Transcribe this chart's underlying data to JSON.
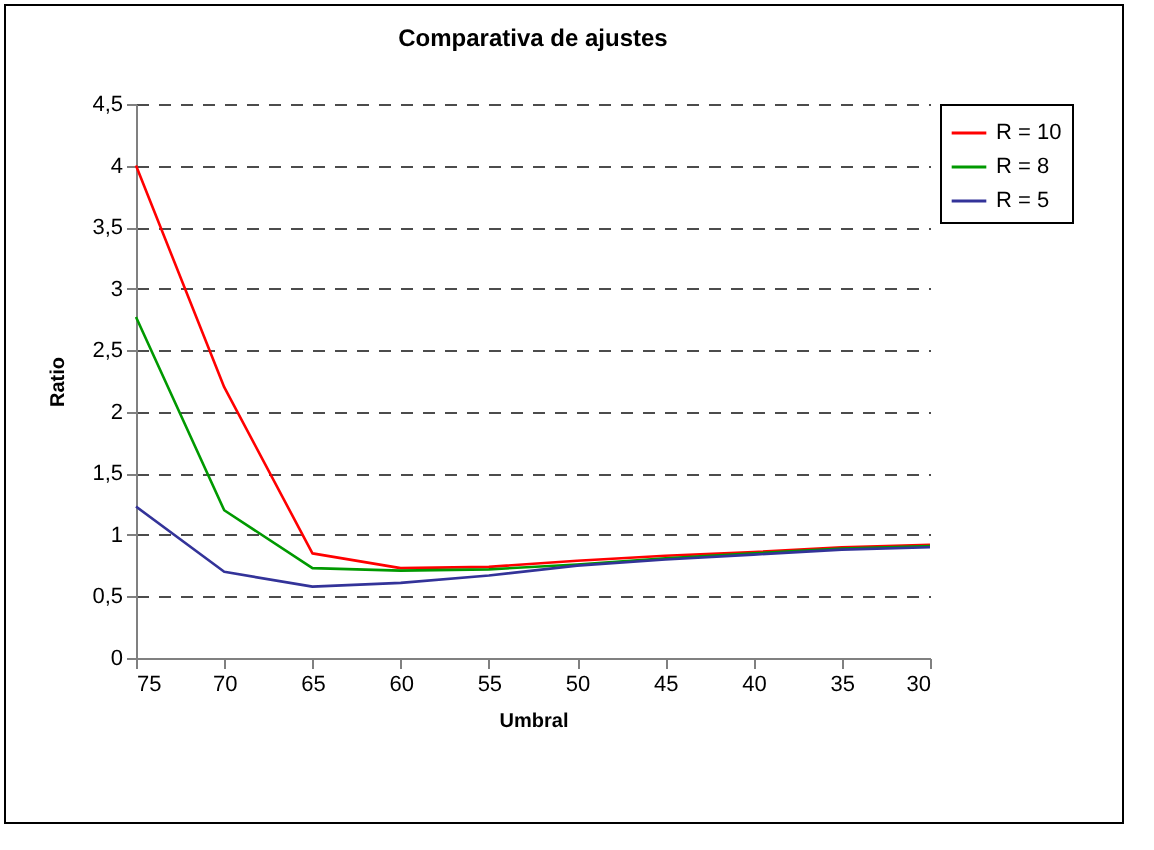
{
  "chart_data": {
    "type": "line",
    "title": "Comparativa de ajustes",
    "xlabel": "Umbral",
    "ylabel": "Ratio",
    "categories": [
      "75",
      "70",
      "65",
      "60",
      "55",
      "50",
      "45",
      "40",
      "35",
      "30"
    ],
    "series": [
      {
        "name": "R = 10",
        "color": "#ff0000",
        "values": [
          4.0,
          2.2,
          0.85,
          0.73,
          0.74,
          0.79,
          0.83,
          0.86,
          0.9,
          0.92
        ]
      },
      {
        "name": "R = 8",
        "color": "#009900",
        "values": [
          2.77,
          1.2,
          0.73,
          0.71,
          0.72,
          0.76,
          0.81,
          0.85,
          0.89,
          0.91
        ]
      },
      {
        "name": "R = 5",
        "color": "#333399",
        "values": [
          1.23,
          0.7,
          0.58,
          0.61,
          0.67,
          0.75,
          0.8,
          0.84,
          0.88,
          0.9
        ]
      }
    ],
    "ylim": [
      0,
      4.5
    ],
    "yticks": [
      0,
      {
        "value": 0.5,
        "label": "0,5"
      },
      1,
      {
        "value": 1.5,
        "label": "1,5"
      },
      2,
      {
        "value": 2.5,
        "label": "2,5"
      },
      3,
      {
        "value": 3.5,
        "label": "3,5"
      },
      4,
      {
        "value": 4.5,
        "label": "4,5"
      }
    ],
    "grid": "y",
    "legend": "right",
    "marker": "none",
    "line_style": "solid"
  }
}
